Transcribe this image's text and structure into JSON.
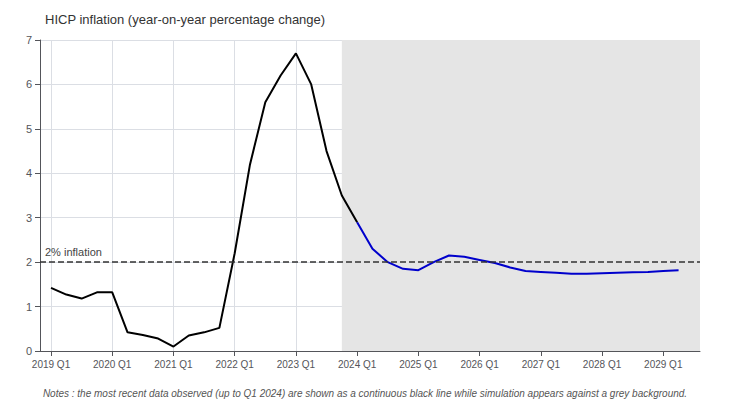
{
  "chart_data": {
    "type": "line",
    "title": "HICP inflation (year-on-year percentage change)",
    "notes": "Notes : the most recent data observed (up to Q1 2024) are shown as a continuous black line while simulation appears against a grey background.",
    "xlim": [
      2018.82,
      2029.6
    ],
    "xticks": [
      {
        "value": 2019.0,
        "label": "2019 Q1"
      },
      {
        "value": 2020.0,
        "label": "2020 Q1"
      },
      {
        "value": 2021.0,
        "label": "2021 Q1"
      },
      {
        "value": 2022.0,
        "label": "2022 Q1"
      },
      {
        "value": 2023.0,
        "label": "2023 Q1"
      },
      {
        "value": 2024.0,
        "label": "2024 Q1"
      },
      {
        "value": 2025.0,
        "label": "2025 Q1"
      },
      {
        "value": 2026.0,
        "label": "2026 Q1"
      },
      {
        "value": 2027.0,
        "label": "2027 Q1"
      },
      {
        "value": 2028.0,
        "label": "2028 Q1"
      },
      {
        "value": 2029.0,
        "label": "2029 Q1"
      }
    ],
    "ylim": [
      0,
      7
    ],
    "yticks": [
      0,
      1,
      2,
      3,
      4,
      5,
      6,
      7
    ],
    "grid": true,
    "series": [
      {
        "color": "#000000",
        "line_style": "solid",
        "x": [
          2019.0,
          2019.25,
          2019.5,
          2019.75,
          2020.0,
          2020.25,
          2020.5,
          2020.75,
          2021.0,
          2021.25,
          2021.5,
          2021.75,
          2022.0,
          2022.25,
          2022.5,
          2022.75,
          2023.0,
          2023.25,
          2023.5,
          2023.75,
          2024.0
        ],
        "values": [
          1.42,
          1.27,
          1.18,
          1.32,
          1.32,
          0.42,
          0.36,
          0.28,
          0.1,
          0.35,
          0.42,
          0.52,
          2.2,
          4.2,
          5.6,
          6.2,
          6.7,
          6.0,
          4.5,
          3.5,
          2.9
        ]
      },
      {
        "color": "#0000cc",
        "line_style": "solid",
        "x": [
          2024.0,
          2024.25,
          2024.5,
          2024.75,
          2025.0,
          2025.25,
          2025.5,
          2025.75,
          2026.0,
          2026.25,
          2026.5,
          2026.75,
          2027.0,
          2027.25,
          2027.5,
          2027.75,
          2028.0,
          2028.25,
          2028.5,
          2028.75,
          2029.0,
          2029.25
        ],
        "values": [
          2.9,
          2.3,
          2.0,
          1.85,
          1.82,
          2.0,
          2.15,
          2.12,
          2.05,
          1.98,
          1.88,
          1.8,
          1.78,
          1.76,
          1.74,
          1.74,
          1.75,
          1.76,
          1.77,
          1.78,
          1.8,
          1.82
        ]
      }
    ],
    "annotations": [
      {
        "text": "2% inflation",
        "y": 2.0,
        "color": "#333333",
        "line_style": "dashed"
      }
    ],
    "shaded_region": {
      "from": 2023.75,
      "to": 2029.6,
      "color": "#e5e5e5"
    }
  }
}
